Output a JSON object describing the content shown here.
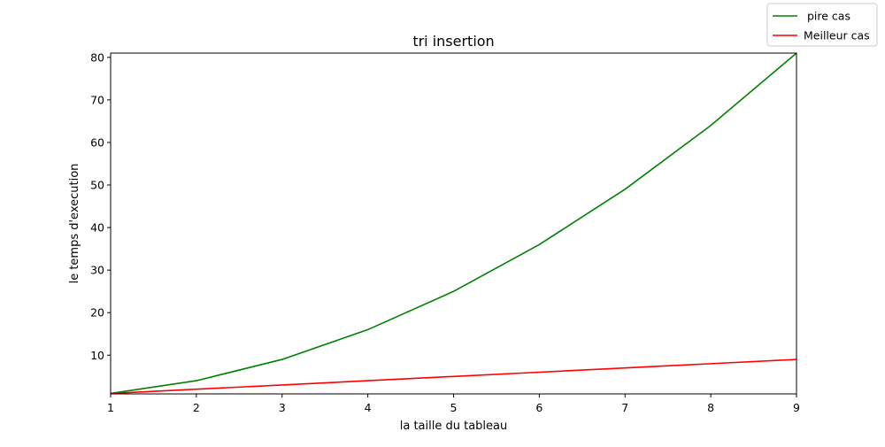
{
  "chart_data": {
    "type": "line",
    "title": "tri insertion",
    "xlabel": "la taille du tableau",
    "ylabel": "le temps d'execution",
    "x": [
      1,
      2,
      3,
      4,
      5,
      6,
      7,
      8,
      9
    ],
    "xlim": [
      1,
      9
    ],
    "ylim": [
      0.9,
      81
    ],
    "xticks": [
      "1",
      "2",
      "3",
      "4",
      "5",
      "6",
      "7",
      "8",
      "9"
    ],
    "yticks": [
      "10",
      "20",
      "30",
      "40",
      "50",
      "60",
      "70",
      "80"
    ],
    "grid": false,
    "legend_position": "top-right",
    "series": [
      {
        "name": " pire cas",
        "color": "#008000",
        "values": [
          1,
          4,
          9,
          16,
          25,
          36,
          49,
          64,
          81
        ]
      },
      {
        "name": "Meilleur cas",
        "color": "#ff0000",
        "values": [
          1,
          2,
          3,
          4,
          5,
          6,
          7,
          8,
          9
        ]
      }
    ]
  }
}
